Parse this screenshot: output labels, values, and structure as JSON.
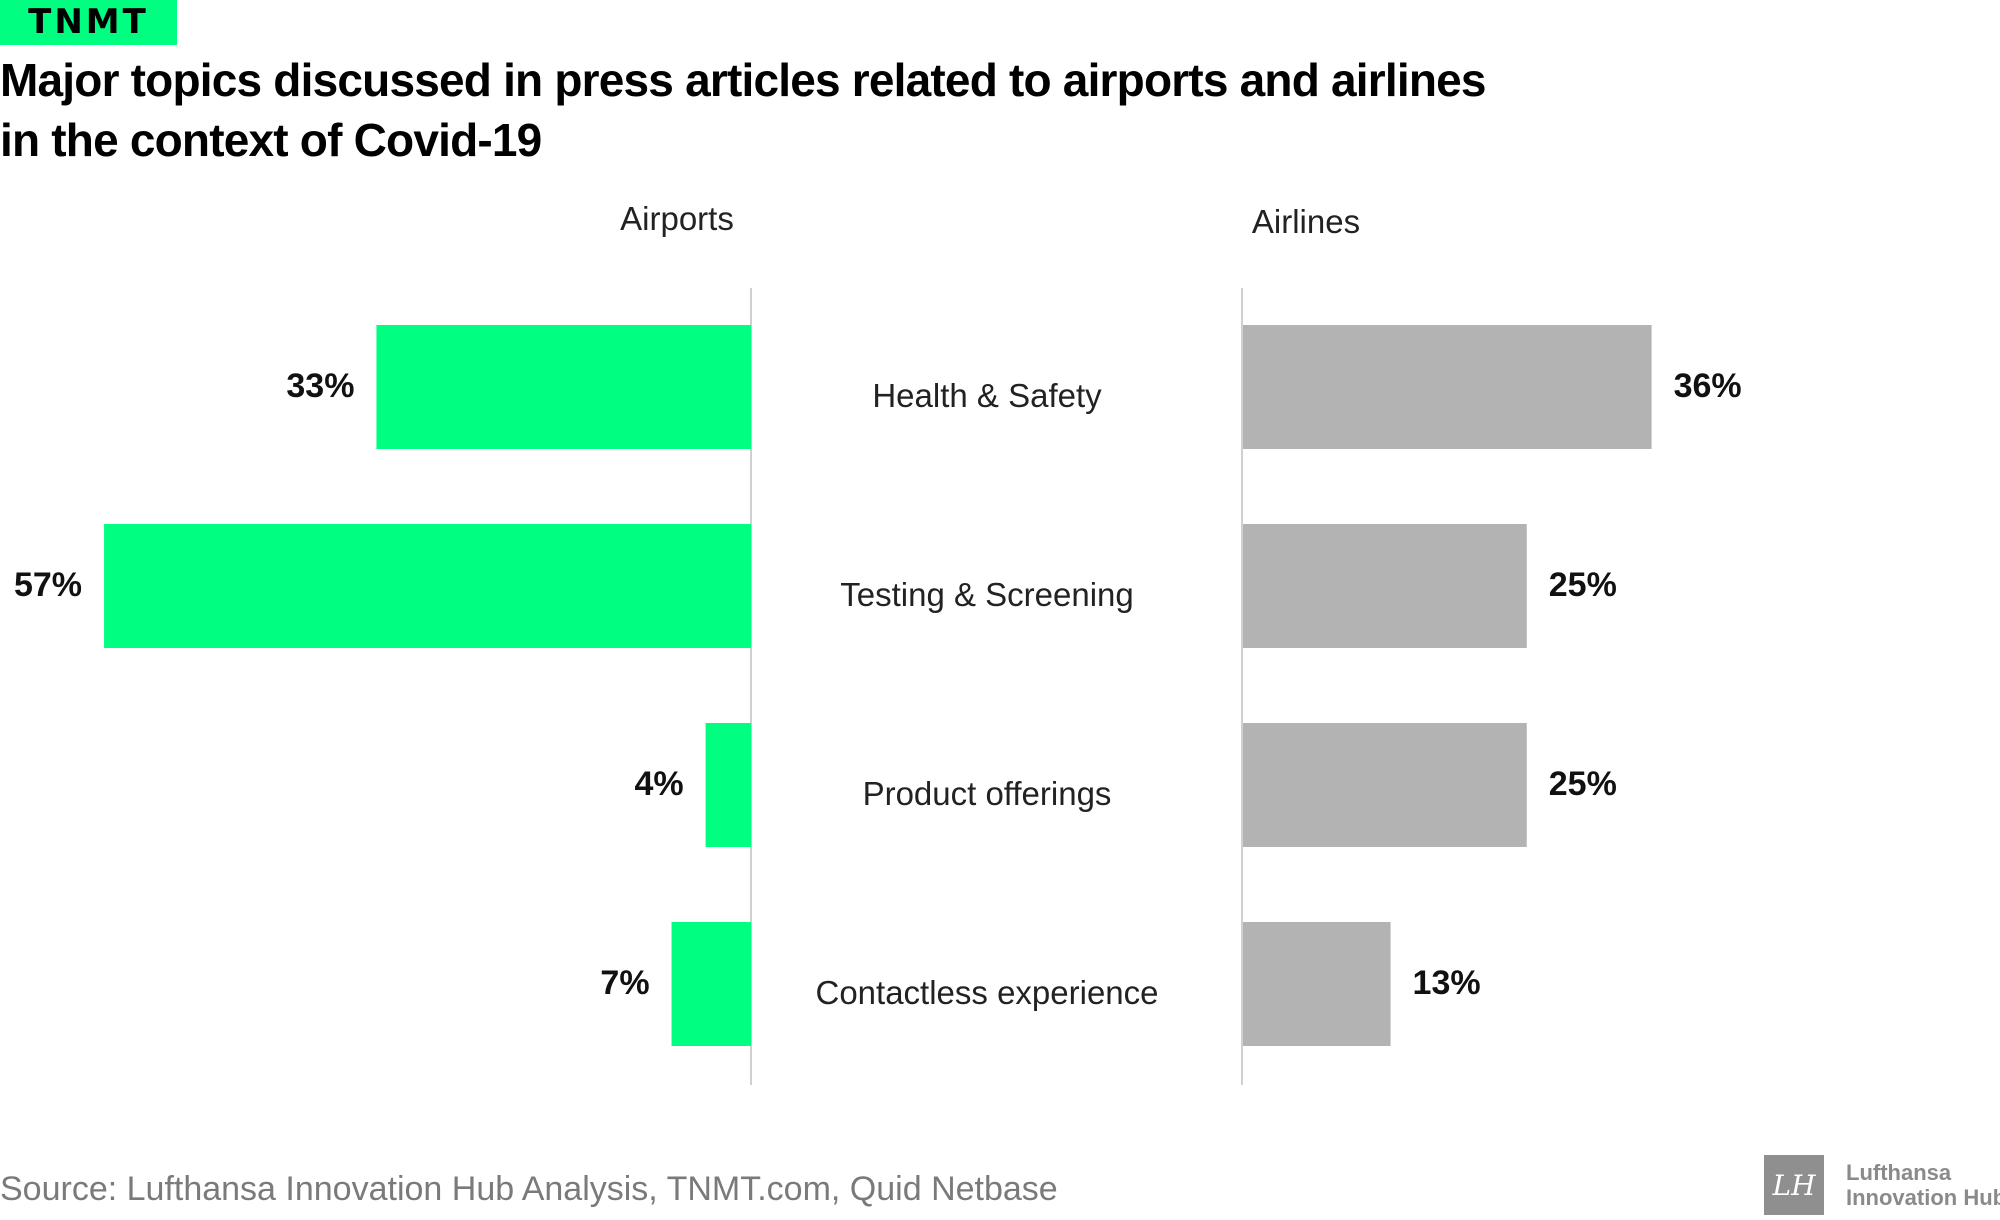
{
  "brand": {
    "tag": "TNMT"
  },
  "title": {
    "line1": "Major topics discussed in press articles related to airports and airlines",
    "line2": "in the context of Covid-19"
  },
  "colors": {
    "airports": "#00ff80",
    "airlines": "#b3b3b3",
    "axis": "#d0d0d0"
  },
  "chart_data": {
    "type": "bar",
    "orientation": "horizontal",
    "layout": "back-to-back",
    "unit": "%",
    "categories": [
      "Health & Safety",
      "Testing & Screening",
      "Product offerings",
      "Contactless experience"
    ],
    "series": [
      {
        "name": "Airports",
        "values": [
          33,
          57,
          4,
          7
        ],
        "labels": [
          "33%",
          "57%",
          "4%",
          "7%"
        ]
      },
      {
        "name": "Airlines",
        "values": [
          36,
          25,
          25,
          13
        ],
        "labels": [
          "36%",
          "25%",
          "25%",
          "13%"
        ]
      }
    ],
    "xlim": [
      0,
      60
    ],
    "grid": false,
    "legend": "none"
  },
  "source": "Source: Lufthansa Innovation Hub Analysis, TNMT.com, Quid Netbase",
  "logo": {
    "line1": "Lufthansa",
    "line2": "Innovation Hub",
    "icon": "lh-monogram-icon"
  }
}
